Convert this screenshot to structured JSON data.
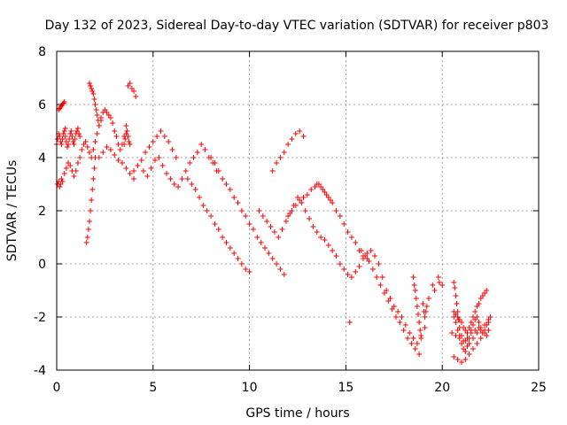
{
  "chart_data": {
    "type": "scatter",
    "title": "Day 132 of 2023, Sidereal Day-to-day VTEC variation (SDTVAR) for receiver p803",
    "xlabel": "GPS time / hours",
    "ylabel": "SDTVAR / TECUs",
    "xlim": [
      0,
      25
    ],
    "ylim": [
      -4,
      8
    ],
    "xticks": [
      0,
      5,
      10,
      15,
      20,
      25
    ],
    "yticks": [
      -4,
      -2,
      0,
      2,
      4,
      6,
      8
    ],
    "xtick_labels": [
      "0",
      "5",
      "10",
      "15",
      "20",
      "25"
    ],
    "ytick_labels": [
      "-4",
      "-2",
      "0",
      "2",
      "4",
      "6",
      "8"
    ],
    "grid": true,
    "marker": "+",
    "color": "#ff0000",
    "series": [
      {
        "name": "SDTVAR",
        "x": [
          0.0,
          0.05,
          0.1,
          0.15,
          0.2,
          0.25,
          0.3,
          0.35,
          0.4,
          0.45,
          0.1,
          0.15,
          0.2,
          0.25,
          0.3,
          0.35,
          0.4,
          0.45,
          0.5,
          0.55,
          0.6,
          0.65,
          0.7,
          0.75,
          0.8,
          0.85,
          0.9,
          0.95,
          1.0,
          1.05,
          1.1,
          1.15,
          1.2,
          0.05,
          0.1,
          0.15,
          0.2,
          0.25,
          0.3,
          0.4,
          0.5,
          0.6,
          0.7,
          0.8,
          0.9,
          1.0,
          1.1,
          1.2,
          1.3,
          1.4,
          1.5,
          1.6,
          1.7,
          1.8,
          1.9,
          2.0,
          2.1,
          2.2,
          2.3,
          1.55,
          1.6,
          1.65,
          1.7,
          1.75,
          1.8,
          1.85,
          1.9,
          1.95,
          2.0,
          1.7,
          1.75,
          1.8,
          1.85,
          1.9,
          1.95,
          2.0,
          2.05,
          2.1,
          2.15,
          2.2,
          2.3,
          2.4,
          2.5,
          2.6,
          2.7,
          2.8,
          2.9,
          3.0,
          3.1,
          3.2,
          3.3,
          3.4,
          3.5,
          3.6,
          3.7,
          3.8,
          3.9,
          4.0,
          4.1,
          2.2,
          2.4,
          2.6,
          2.8,
          3.0,
          3.2,
          3.4,
          3.6,
          3.8,
          4.0,
          3.5,
          3.55,
          3.6,
          3.65,
          3.7,
          3.75,
          3.8,
          4.0,
          4.2,
          4.4,
          4.6,
          4.8,
          5.0,
          5.2,
          5.4,
          5.6,
          5.8,
          6.0,
          6.2,
          4.5,
          4.7,
          4.9,
          5.1,
          5.3,
          5.5,
          5.7,
          5.9,
          6.1,
          6.3,
          6.5,
          6.7,
          6.9,
          7.1,
          7.3,
          7.5,
          7.7,
          7.9,
          8.1,
          8.3,
          6.8,
          7.0,
          7.2,
          7.4,
          7.6,
          7.8,
          8.0,
          8.2,
          8.4,
          8.6,
          8.8,
          9.0,
          9.2,
          9.4,
          9.6,
          9.8,
          10.0,
          8.0,
          8.2,
          8.4,
          8.6,
          8.8,
          9.0,
          9.2,
          9.4,
          9.6,
          9.8,
          10.0,
          10.2,
          10.4,
          10.6,
          10.8,
          11.0,
          11.2,
          11.4,
          11.6,
          11.8,
          12.0,
          12.2,
          12.4,
          12.6,
          12.8,
          13.0,
          13.2,
          13.4,
          13.6,
          13.8,
          14.0,
          14.2,
          11.2,
          11.4,
          11.6,
          11.8,
          12.0,
          12.2,
          12.4,
          12.6,
          12.8,
          10.5,
          10.7,
          10.9,
          11.1,
          11.3,
          11.5,
          11.7,
          11.9,
          12.1,
          12.3,
          12.5,
          12.7,
          12.9,
          13.1,
          13.3,
          13.5,
          13.7,
          13.9,
          14.1,
          14.3,
          14.5,
          14.7,
          14.9,
          15.1,
          15.3,
          15.5,
          15.7,
          15.9,
          16.1,
          13.5,
          13.7,
          13.9,
          14.1,
          14.3,
          14.5,
          14.7,
          14.9,
          15.1,
          15.3,
          15.5,
          15.7,
          15.9,
          16.1,
          16.3,
          16.5,
          16.7,
          16.9,
          17.1,
          17.3,
          17.5,
          17.7,
          17.9,
          18.1,
          18.3,
          18.5,
          18.7,
          18.9,
          19.1,
          15.8,
          16.0,
          16.2,
          16.4,
          16.6,
          16.8,
          17.0,
          17.2,
          17.4,
          17.6,
          17.8,
          18.0,
          18.2,
          18.4,
          18.6,
          18.8,
          18.5,
          18.55,
          18.6,
          18.65,
          18.7,
          18.75,
          18.8,
          18.85,
          18.9,
          19.0,
          19.05,
          19.1,
          19.15,
          19.2,
          19.3,
          19.5,
          19.6,
          19.8,
          19.85,
          20.0,
          20.6,
          20.7,
          20.8,
          20.9,
          21.0,
          21.1,
          21.2,
          21.3,
          21.4,
          21.5,
          21.6,
          21.7,
          21.8,
          21.9,
          22.0,
          22.1,
          22.2,
          22.3,
          22.4,
          22.5,
          20.6,
          20.7,
          20.8,
          20.9,
          21.0,
          21.1,
          21.2,
          21.3,
          21.4,
          21.5,
          21.6,
          21.7,
          21.8,
          21.9,
          22.0,
          22.1,
          22.2,
          22.3,
          20.6,
          20.8,
          21.0,
          21.2,
          21.4,
          21.6,
          21.8,
          22.0,
          22.2,
          22.4,
          20.5,
          20.7,
          20.9,
          21.1,
          21.3,
          21.5,
          21.7,
          21.9,
          22.1,
          22.3,
          15.2,
          20.6,
          20.65,
          20.7,
          20.75,
          20.8,
          20.85,
          20.9,
          21.0,
          21.2,
          21.4,
          21.6,
          21.8,
          22.0,
          22.2,
          22.4
        ],
        "y": [
          4.5,
          4.7,
          4.9,
          4.8,
          4.6,
          4.5,
          4.7,
          4.9,
          5.0,
          5.1,
          5.8,
          5.85,
          5.9,
          5.95,
          6.0,
          6.05,
          6.1,
          4.8,
          4.6,
          4.4,
          4.5,
          4.7,
          4.9,
          5.0,
          4.8,
          4.6,
          4.5,
          4.7,
          4.9,
          5.0,
          5.1,
          4.9,
          4.8,
          3.0,
          3.1,
          2.9,
          3.0,
          3.2,
          3.1,
          3.4,
          3.6,
          3.8,
          3.7,
          3.5,
          3.3,
          3.5,
          3.8,
          4.0,
          4.3,
          4.5,
          4.6,
          4.4,
          4.2,
          4.0,
          4.3,
          4.6,
          4.9,
          5.2,
          5.4,
          0.8,
          1.0,
          1.3,
          1.6,
          2.0,
          2.4,
          2.8,
          3.2,
          3.6,
          4.0,
          6.8,
          6.7,
          6.6,
          6.5,
          6.4,
          6.2,
          6.0,
          5.8,
          5.6,
          5.4,
          5.2,
          5.5,
          5.7,
          5.8,
          5.7,
          5.6,
          5.5,
          5.3,
          5.0,
          4.8,
          4.5,
          4.3,
          4.5,
          4.8,
          5.2,
          6.7,
          6.8,
          6.6,
          6.5,
          6.3,
          4.0,
          4.2,
          4.4,
          4.3,
          4.1,
          3.9,
          3.8,
          3.6,
          3.4,
          3.2,
          4.5,
          4.7,
          4.9,
          5.0,
          4.8,
          4.6,
          4.5,
          3.5,
          3.7,
          3.9,
          4.2,
          4.4,
          4.6,
          4.8,
          5.0,
          4.8,
          4.6,
          4.3,
          4.0,
          3.5,
          3.3,
          3.6,
          3.9,
          4.0,
          3.7,
          3.4,
          3.2,
          3.0,
          2.9,
          3.2,
          3.5,
          3.8,
          4.0,
          4.2,
          4.5,
          4.3,
          4.0,
          3.8,
          3.5,
          3.2,
          3.0,
          2.8,
          2.5,
          2.2,
          2.0,
          1.8,
          1.5,
          1.3,
          1.0,
          0.8,
          0.6,
          0.4,
          0.2,
          0.0,
          -0.2,
          -0.3,
          4.0,
          3.8,
          3.5,
          3.2,
          3.0,
          2.8,
          2.5,
          2.3,
          2.0,
          1.8,
          1.5,
          1.3,
          1.0,
          0.8,
          0.6,
          0.4,
          0.2,
          0.0,
          -0.2,
          -0.4,
          1.8,
          2.0,
          2.2,
          2.4,
          2.5,
          2.6,
          2.8,
          2.9,
          3.0,
          2.8,
          2.6,
          2.4,
          3.5,
          3.8,
          4.0,
          4.2,
          4.5,
          4.7,
          4.9,
          5.0,
          4.8,
          2.0,
          1.8,
          1.6,
          1.4,
          1.2,
          1.0,
          1.3,
          1.6,
          1.9,
          2.2,
          2.5,
          2.3,
          2.0,
          1.7,
          1.4,
          1.2,
          1.0,
          0.9,
          0.7,
          0.5,
          0.3,
          0.0,
          -0.2,
          -0.4,
          -0.5,
          -0.3,
          -0.1,
          0.2,
          0.4,
          3.0,
          2.9,
          2.7,
          2.5,
          2.3,
          2.0,
          1.8,
          1.5,
          1.2,
          1.0,
          0.8,
          0.5,
          0.3,
          0.2,
          0.5,
          0.3,
          0.0,
          -0.5,
          -1.0,
          -1.3,
          -1.6,
          -1.8,
          -2.0,
          -2.3,
          -2.6,
          -2.8,
          -3.0,
          -2.7,
          -2.4,
          0.5,
          0.3,
          0.1,
          -0.2,
          -0.5,
          -0.8,
          -1.1,
          -1.4,
          -1.7,
          -2.0,
          -2.2,
          -2.5,
          -2.8,
          -3.0,
          -3.2,
          -3.4,
          -0.5,
          -0.8,
          -1.0,
          -1.3,
          -1.6,
          -1.9,
          -2.2,
          -2.5,
          -2.8,
          -1.5,
          -1.8,
          -2.0,
          -1.8,
          -1.6,
          -1.3,
          -0.8,
          -1.0,
          -0.5,
          -0.7,
          -0.8,
          -2.0,
          -2.2,
          -2.5,
          -2.7,
          -3.0,
          -3.2,
          -3.3,
          -3.1,
          -2.8,
          -2.5,
          -2.3,
          -2.1,
          -2.0,
          -2.2,
          -2.4,
          -2.6,
          -2.5,
          -2.3,
          -2.1,
          -2.0,
          -1.8,
          -1.9,
          -2.0,
          -2.1,
          -2.2,
          -2.4,
          -2.5,
          -2.6,
          -2.4,
          -2.2,
          -2.0,
          -1.8,
          -1.6,
          -1.5,
          -1.3,
          -1.2,
          -1.1,
          -1.0,
          -3.5,
          -3.6,
          -3.7,
          -3.6,
          -3.4,
          -3.2,
          -3.0,
          -2.8,
          -2.6,
          -2.5,
          -2.6,
          -2.7,
          -2.8,
          -2.9,
          -2.8,
          -2.6,
          -2.5,
          -2.4,
          -2.6,
          -2.7,
          -2.2,
          -0.7,
          -0.9,
          -1.2,
          -1.5,
          -1.8,
          -2.1,
          -2.4,
          -2.7,
          -2.9,
          -3.0,
          -2.8,
          -2.6,
          -2.5,
          -2.3,
          -2.2
        ]
      }
    ]
  }
}
